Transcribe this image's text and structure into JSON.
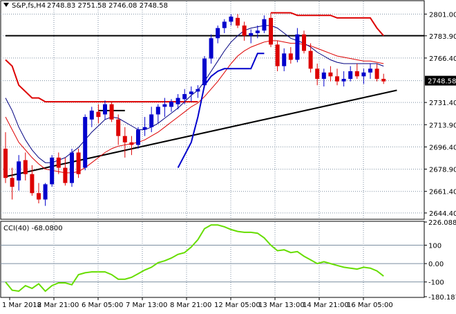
{
  "header": {
    "symbol_label": "S&P,fs,H4",
    "ohlc_label": "2748.83 2751.58 2746.08 2748.58",
    "menu_icon": "triangle-down-icon"
  },
  "colors": {
    "bull": "#0000cc",
    "bear": "#dd0000",
    "slow_ma": "#dd0000",
    "fast_ma": "#000080",
    "stop": "#dd0000",
    "stop_support": "#0000cc",
    "cci": "#66dd00",
    "trend": "#000000",
    "grid": "#7b8ea0",
    "price_tag_bg": "#000000",
    "price_tag_text": "#ffffff"
  },
  "chart_data": [
    {
      "type": "candlestick",
      "title": "S&P,fs,H4",
      "ylim": [
        2640,
        2811
      ],
      "y_ticks": [
        "2801.00",
        "2783.90",
        "2766.40",
        "2748.58",
        "2731.40",
        "2713.90",
        "2696.40",
        "2678.90",
        "2661.40",
        "2644.40"
      ],
      "last_price": "2748.58",
      "x_ticks": [
        "1 Mar 2018",
        "2 Mar 21:00",
        "6 Mar 05:00",
        "7 Mar 13:00",
        "8 Mar 21:00",
        "12 Mar 05:00",
        "13 Mar 13:00",
        "14 Mar 21:00",
        "16 Mar 05:00"
      ],
      "grid": true,
      "candles": [
        [
          2695,
          2708,
          2668,
          2672
        ],
        [
          2672,
          2680,
          2655,
          2665
        ],
        [
          2670,
          2690,
          2662,
          2685
        ],
        [
          2686,
          2692,
          2670,
          2675
        ],
        [
          2675,
          2682,
          2658,
          2660
        ],
        [
          2660,
          2668,
          2652,
          2655
        ],
        [
          2655,
          2668,
          2650,
          2667
        ],
        [
          2667,
          2690,
          2665,
          2688
        ],
        [
          2688,
          2692,
          2675,
          2680
        ],
        [
          2680,
          2688,
          2666,
          2668
        ],
        [
          2668,
          2695,
          2665,
          2692
        ],
        [
          2692,
          2695,
          2672,
          2675
        ],
        [
          2680,
          2722,
          2678,
          2720
        ],
        [
          2718,
          2728,
          2712,
          2725
        ],
        [
          2724,
          2730,
          2715,
          2720
        ],
        [
          2722,
          2733,
          2718,
          2730
        ],
        [
          2730,
          2732,
          2716,
          2718
        ],
        [
          2718,
          2722,
          2698,
          2705
        ],
        [
          2705,
          2712,
          2688,
          2700
        ],
        [
          2700,
          2705,
          2690,
          2698
        ],
        [
          2698,
          2712,
          2695,
          2710
        ],
        [
          2710,
          2720,
          2705,
          2712
        ],
        [
          2712,
          2728,
          2708,
          2722
        ],
        [
          2722,
          2730,
          2715,
          2728
        ],
        [
          2728,
          2735,
          2720,
          2730
        ],
        [
          2728,
          2734,
          2724,
          2732
        ],
        [
          2730,
          2738,
          2726,
          2735
        ],
        [
          2734,
          2742,
          2730,
          2738
        ],
        [
          2738,
          2744,
          2732,
          2740
        ],
        [
          2740,
          2745,
          2735,
          2742
        ],
        [
          2745,
          2768,
          2743,
          2766
        ],
        [
          2766,
          2785,
          2762,
          2782
        ],
        [
          2782,
          2792,
          2778,
          2790
        ],
        [
          2790,
          2797,
          2786,
          2795
        ],
        [
          2795,
          2801,
          2792,
          2799
        ],
        [
          2798,
          2801,
          2790,
          2792
        ],
        [
          2792,
          2795,
          2780,
          2784
        ],
        [
          2784,
          2789,
          2778,
          2786
        ],
        [
          2786,
          2792,
          2782,
          2788
        ],
        [
          2788,
          2800,
          2786,
          2797
        ],
        [
          2798,
          2802,
          2775,
          2777
        ],
        [
          2777,
          2780,
          2756,
          2760
        ],
        [
          2760,
          2774,
          2756,
          2770
        ],
        [
          2770,
          2775,
          2762,
          2765
        ],
        [
          2765,
          2790,
          2763,
          2785
        ],
        [
          2785,
          2788,
          2770,
          2772
        ],
        [
          2772,
          2778,
          2755,
          2758
        ],
        [
          2758,
          2762,
          2745,
          2750
        ],
        [
          2750,
          2758,
          2744,
          2755
        ],
        [
          2755,
          2760,
          2748,
          2752
        ],
        [
          2752,
          2758,
          2745,
          2748
        ],
        [
          2748,
          2756,
          2744,
          2750
        ],
        [
          2750,
          2760,
          2748,
          2756
        ],
        [
          2756,
          2762,
          2750,
          2752
        ],
        [
          2752,
          2758,
          2746,
          2755
        ],
        [
          2755,
          2762,
          2750,
          2758
        ],
        [
          2758,
          2762,
          2748,
          2750
        ],
        [
          2750,
          2754,
          2746,
          2748
        ]
      ],
      "series": [
        {
          "name": "",
          "kind": "slow_ma",
          "values": [
            2720,
            2710,
            2700,
            2694,
            2688,
            2683,
            2679,
            2678,
            2677,
            2676,
            2676,
            2677,
            2680,
            2684,
            2688,
            2692,
            2695,
            2697,
            2698,
            2699,
            2700,
            2702,
            2705,
            2708,
            2712,
            2716,
            2720,
            2724,
            2728,
            2731,
            2736,
            2742,
            2748,
            2755,
            2762,
            2768,
            2772,
            2775,
            2777,
            2779,
            2780,
            2780,
            2779,
            2778,
            2778,
            2777,
            2776,
            2774,
            2772,
            2770,
            2768,
            2767,
            2766,
            2765,
            2764,
            2764,
            2763,
            2762
          ]
        },
        {
          "name": "",
          "kind": "fast_ma",
          "values": [
            2735,
            2725,
            2712,
            2702,
            2694,
            2688,
            2684,
            2684,
            2686,
            2688,
            2692,
            2696,
            2702,
            2708,
            2713,
            2718,
            2720,
            2719,
            2716,
            2713,
            2710,
            2710,
            2712,
            2715,
            2719,
            2723,
            2727,
            2732,
            2737,
            2741,
            2748,
            2756,
            2764,
            2772,
            2779,
            2784,
            2788,
            2790,
            2791,
            2792,
            2792,
            2790,
            2786,
            2782,
            2780,
            2778,
            2775,
            2771,
            2768,
            2765,
            2763,
            2762,
            2762,
            2762,
            2762,
            2762,
            2762,
            2760
          ]
        },
        {
          "name": "",
          "kind": "stop",
          "values": [
            2765,
            2760,
            2745,
            2740,
            2735,
            2735,
            2732,
            2732,
            2732,
            2732,
            2732,
            2732,
            2732,
            2732,
            2732,
            2732,
            2732,
            2732,
            2732,
            2732,
            2732,
            2732,
            2732,
            2732,
            2732,
            2732,
            2732,
            2732,
            2732,
            2732,
            null,
            null,
            null,
            null,
            null,
            null,
            null,
            null,
            null,
            null,
            2802,
            2802,
            2802,
            2802,
            2800,
            2800,
            2800,
            2800,
            2800,
            2800,
            2798,
            2798,
            2798,
            2798,
            2798,
            2798,
            2790,
            2784
          ]
        },
        {
          "name": "",
          "kind": "stop_support",
          "values": [
            null,
            null,
            null,
            null,
            null,
            null,
            null,
            null,
            null,
            null,
            null,
            null,
            null,
            null,
            null,
            null,
            null,
            null,
            null,
            null,
            null,
            null,
            null,
            null,
            null,
            null,
            2680,
            2690,
            2700,
            2720,
            2745,
            2752,
            2756,
            2758,
            2758,
            2758,
            2758,
            2758,
            2770,
            2770,
            null,
            null,
            null,
            null,
            null,
            null,
            null,
            null,
            null,
            null,
            null,
            null,
            null,
            null,
            null,
            null,
            null,
            null
          ]
        }
      ],
      "trendlines": [
        {
          "from": [
            0,
            2673
          ],
          "to": [
            59,
            2741
          ],
          "color": "trend"
        },
        {
          "from": [
            0,
            2784
          ],
          "to": [
            30,
            2784
          ],
          "to_edge": true,
          "color": "trend"
        },
        {
          "from": [
            14,
            2725
          ],
          "to": [
            18,
            2725
          ],
          "color": "trend"
        }
      ]
    },
    {
      "type": "line",
      "title": "CCI(40) -68.0800",
      "ylim": [
        -180.1879,
        226.0881
      ],
      "y_ticks": [
        "226.0881",
        "100",
        "0.00",
        "-100",
        "-180.1879"
      ],
      "levels": [
        100,
        0,
        -100
      ],
      "series": [
        {
          "name": "CCI(40)",
          "values": [
            -100,
            -145,
            -150,
            -120,
            -135,
            -110,
            -150,
            -120,
            -105,
            -105,
            -115,
            -60,
            -50,
            -45,
            -45,
            -45,
            -60,
            -85,
            -85,
            -75,
            -55,
            -35,
            -20,
            5,
            15,
            30,
            50,
            60,
            90,
            130,
            190,
            210,
            210,
            200,
            185,
            175,
            170,
            170,
            165,
            140,
            100,
            70,
            75,
            60,
            65,
            40,
            20,
            0,
            10,
            0,
            -10,
            -20,
            -25,
            -30,
            -20,
            -25,
            -40,
            -68
          ]
        }
      ]
    }
  ]
}
